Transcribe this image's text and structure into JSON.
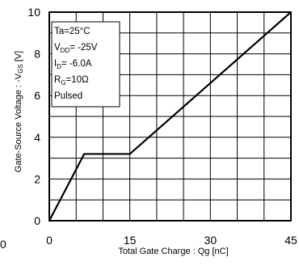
{
  "chart_data": {
    "type": "line",
    "xlabel": "Total Gate Charge : Qg  [nC]",
    "ylabel": "Gate-Source Voltage : -V",
    "ylabel_sub": "GS",
    "ylabel_unit": " [V]",
    "xlim": [
      0,
      45
    ],
    "ylim": [
      0,
      10
    ],
    "x_ticks": [
      0,
      15,
      30,
      45
    ],
    "y_ticks": [
      0,
      2,
      4,
      6,
      8,
      10
    ],
    "x_tick_labels": [
      "0",
      "15",
      "30",
      "45"
    ],
    "y_tick_labels": [
      "0",
      "2",
      "4",
      "6",
      "8",
      "10"
    ],
    "grid": true,
    "edge_label": "0",
    "series": [
      {
        "x": [
          0,
          6.5,
          15,
          45
        ],
        "y": [
          0,
          3.2,
          3.2,
          10
        ]
      }
    ],
    "conditions": [
      {
        "main": "Ta=25°C",
        "sub": "",
        "rest": ""
      },
      {
        "main": "V",
        "sub": "DD",
        "rest": "= -25V"
      },
      {
        "main": "I",
        "sub": "D",
        "rest": "= -6.0A"
      },
      {
        "main": "R",
        "sub": "G",
        "rest": "=10Ω"
      },
      {
        "main": "Pulsed",
        "sub": "",
        "rest": ""
      }
    ]
  }
}
